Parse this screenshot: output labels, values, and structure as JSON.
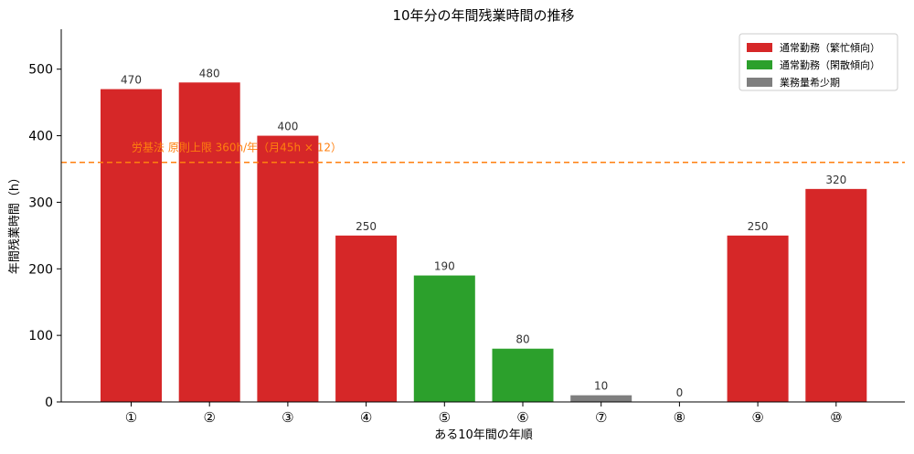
{
  "chart_data": {
    "type": "bar",
    "title": "10年分の年間残業時間の推移",
    "xlabel": "ある10年間の年順",
    "ylabel": "年間残業時間（h）",
    "ylim": [
      0,
      560
    ],
    "yticks": [
      0,
      100,
      200,
      300,
      400,
      500
    ],
    "categories": [
      "①",
      "②",
      "③",
      "④",
      "⑤",
      "⑥",
      "⑦",
      "⑧",
      "⑨",
      "⑩"
    ],
    "values": [
      470,
      480,
      400,
      250,
      190,
      80,
      10,
      0,
      250,
      320
    ],
    "value_labels": [
      "470",
      "480",
      "400",
      "250",
      "190",
      "80",
      "10",
      "0",
      "250",
      "320"
    ],
    "bar_groups": [
      0,
      0,
      0,
      0,
      1,
      1,
      2,
      2,
      0,
      0
    ],
    "legend": {
      "position": "top-right",
      "entries": [
        {
          "name": "通常勤務（繁忙傾向）",
          "color": "#d62728"
        },
        {
          "name": "通常勤務（閑散傾向）",
          "color": "#2ca02c"
        },
        {
          "name": "業務量希少期",
          "color": "#7f7f7f"
        }
      ]
    },
    "reference_line": {
      "value": 360,
      "label": "労基法 原則上限 360h/年（月45h × 12）",
      "color": "#ff7f0e",
      "style": "dashed"
    },
    "grid": false
  }
}
